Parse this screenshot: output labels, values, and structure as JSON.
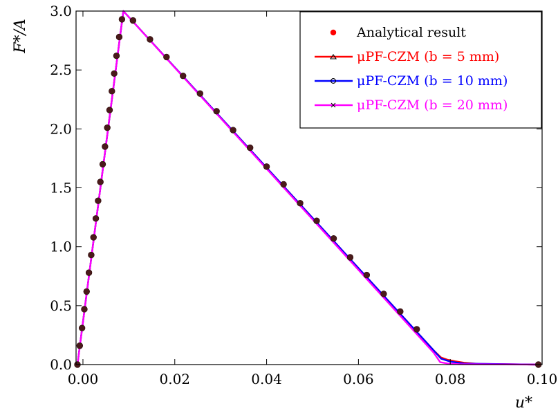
{
  "chart_data": {
    "type": "line",
    "xlabel": "u*",
    "ylabel": "F*/A",
    "xlim": [
      -0.0015,
      0.1
    ],
    "ylim": [
      0.0,
      3.0
    ],
    "xticks": [
      0.0,
      0.02,
      0.04,
      0.06,
      0.08,
      0.1
    ],
    "xtick_labels": [
      "0.00",
      "0.02",
      "0.04",
      "0.06",
      "0.08",
      "0.10"
    ],
    "yticks": [
      0.0,
      0.5,
      1.0,
      1.5,
      2.0,
      2.5,
      3.0
    ],
    "ytick_labels": [
      "0.0",
      "0.5",
      "1.0",
      "1.5",
      "2.0",
      "2.5",
      "3.0"
    ],
    "grid": false,
    "legend_position": "top-right",
    "legend_labels": {
      "analytical": "Analytical result",
      "b5": "μPF-CZM (b =   5 mm)",
      "b10": "μPF-CZM (b = 10 mm)",
      "b20": "μPF-CZM (b = 20 mm)"
    },
    "analytical": {
      "name": "Analytical result",
      "color": "#ff0000",
      "x": [
        -0.0012,
        -0.0007,
        -0.0002,
        0.0003,
        0.0008,
        0.0013,
        0.0018,
        0.0023,
        0.0028,
        0.0033,
        0.0038,
        0.0043,
        0.0048,
        0.0053,
        0.0058,
        0.0063,
        0.0068,
        0.0073,
        0.0079,
        0.0085,
        0.0109,
        0.0146,
        0.0182,
        0.0218,
        0.0255,
        0.0291,
        0.0327,
        0.0364,
        0.04,
        0.0437,
        0.0473,
        0.0509,
        0.0546,
        0.0582,
        0.0618,
        0.0655,
        0.0691,
        0.0727,
        0.0992
      ],
      "y": [
        0.0,
        0.16,
        0.31,
        0.47,
        0.62,
        0.78,
        0.93,
        1.08,
        1.24,
        1.39,
        1.55,
        1.7,
        1.85,
        2.01,
        2.16,
        2.32,
        2.47,
        2.62,
        2.78,
        2.93,
        2.92,
        2.76,
        2.61,
        2.45,
        2.3,
        2.15,
        1.99,
        1.84,
        1.68,
        1.53,
        1.37,
        1.22,
        1.07,
        0.91,
        0.76,
        0.6,
        0.45,
        0.3,
        0.0
      ]
    },
    "series": [
      {
        "name": "μPF-CZM (b =   5 mm)",
        "color": "#ff0000",
        "marker": "triangle",
        "x": [
          -0.0012,
          0.0088,
          0.0764,
          0.078,
          0.0795,
          0.081,
          0.083,
          0.086,
          0.0992
        ],
        "y": [
          0.0,
          3.0,
          0.12,
          0.06,
          0.04,
          0.028,
          0.016,
          0.006,
          0.0
        ]
      },
      {
        "name": "μPF-CZM (b = 10 mm)",
        "color": "#0000ff",
        "marker": "circle",
        "x": [
          -0.0012,
          0.0088,
          0.0764,
          0.078,
          0.08,
          0.083,
          0.0992
        ],
        "y": [
          0.0,
          3.0,
          0.12,
          0.05,
          0.025,
          0.008,
          0.0
        ]
      },
      {
        "name": "μPF-CZM (b = 20 mm)",
        "color": "#ff00ff",
        "marker": "x",
        "x": [
          -0.0012,
          0.0088,
          0.0764,
          0.0778,
          0.0795,
          0.082,
          0.0992
        ],
        "y": [
          0.0,
          3.0,
          0.1,
          0.02,
          0.008,
          0.003,
          0.0
        ]
      }
    ]
  }
}
